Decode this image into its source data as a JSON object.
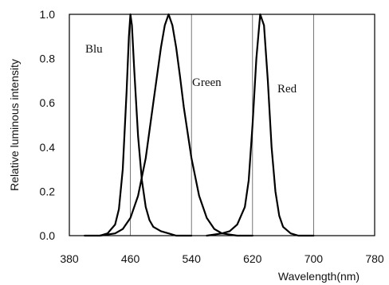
{
  "chart_data": {
    "type": "line",
    "xlabel": "Wavelength(nm)",
    "ylabel": "Relative luminous intensity",
    "xlim": [
      380,
      780
    ],
    "ylim": [
      0,
      1.0
    ],
    "xticks": [
      "380",
      "460",
      "540",
      "620",
      "700",
      "780"
    ],
    "yticks": [
      "0.0",
      "0.2",
      "0.4",
      "0.6",
      "0.8",
      "1.0"
    ],
    "grid": true,
    "annotations": [
      "Blu",
      "Green",
      "Red"
    ],
    "series": [
      {
        "x": [
          400,
          420,
          430,
          440,
          445,
          450,
          455,
          458,
          460,
          462,
          465,
          470,
          475,
          480,
          485,
          490,
          500,
          510,
          520,
          540
        ],
        "y": [
          0.0,
          0.0,
          0.01,
          0.05,
          0.12,
          0.3,
          0.65,
          0.9,
          1.0,
          0.95,
          0.75,
          0.45,
          0.25,
          0.13,
          0.07,
          0.04,
          0.02,
          0.01,
          0.0,
          0.0
        ]
      },
      {
        "x": [
          420,
          440,
          450,
          460,
          470,
          480,
          490,
          500,
          505,
          510,
          515,
          520,
          525,
          530,
          540,
          550,
          560,
          570,
          580,
          600,
          620
        ],
        "y": [
          0.0,
          0.01,
          0.03,
          0.08,
          0.18,
          0.35,
          0.6,
          0.85,
          0.95,
          1.0,
          0.95,
          0.85,
          0.72,
          0.58,
          0.35,
          0.18,
          0.08,
          0.03,
          0.01,
          0.0,
          0.0
        ]
      },
      {
        "x": [
          560,
          580,
          590,
          600,
          610,
          615,
          620,
          625,
          630,
          635,
          640,
          645,
          650,
          655,
          660,
          670,
          680,
          700
        ],
        "y": [
          0.0,
          0.01,
          0.02,
          0.05,
          0.13,
          0.25,
          0.5,
          0.8,
          1.0,
          0.95,
          0.7,
          0.4,
          0.2,
          0.09,
          0.04,
          0.01,
          0.0,
          0.0
        ]
      }
    ]
  }
}
